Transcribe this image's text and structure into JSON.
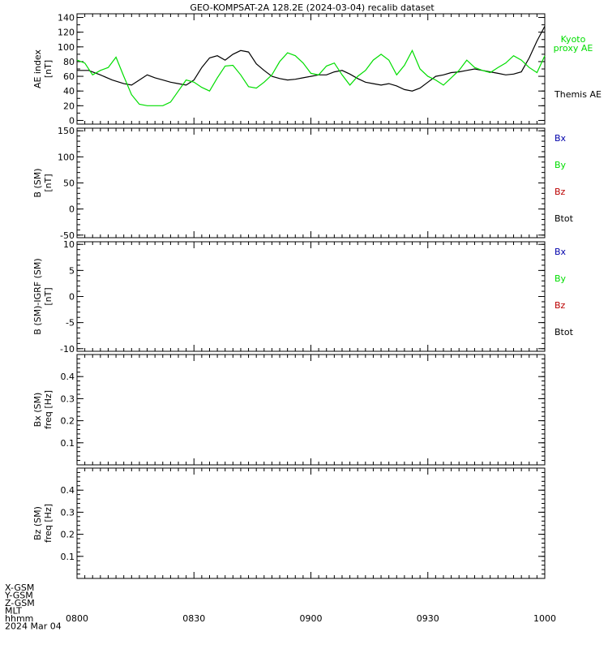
{
  "title": "GEO-KOMPSAT-2A 128.2E (2024-03-04) recalib dataset",
  "colors": {
    "black": "#000000",
    "green": "#00dd00",
    "blue": "#0000aa",
    "red": "#bb0000"
  },
  "time_axis": {
    "start": "0800",
    "end": "1000",
    "labels": [
      "0800",
      "0830",
      "0900",
      "0930",
      "1000"
    ],
    "footer": [
      "X-GSM",
      "Y-GSM",
      "Z-GSM",
      "MLT",
      "hhmm",
      "2024 Mar 04"
    ]
  },
  "chart_data": [
    {
      "type": "line",
      "id": "ae",
      "ylabel": [
        "AE index",
        "[nT]"
      ],
      "ylim": [
        -5,
        145
      ],
      "yticks": [
        0,
        20,
        40,
        60,
        80,
        100,
        120,
        140
      ],
      "series": [
        {
          "name": "Themis AE",
          "color": "#000000",
          "minutes": [
            0,
            3,
            6,
            9,
            12,
            14,
            16,
            18,
            20,
            22,
            24,
            26,
            28,
            30,
            32,
            34,
            36,
            38,
            40,
            42,
            44,
            46,
            48,
            50,
            52,
            54,
            56,
            58,
            60,
            62,
            64,
            66,
            68,
            70,
            72,
            74,
            76,
            78,
            80,
            82,
            84,
            86,
            88,
            90,
            92,
            94,
            96,
            98,
            100,
            102,
            104,
            106,
            108,
            110,
            112,
            114,
            116,
            118,
            120
          ],
          "values": [
            68,
            68,
            62,
            55,
            50,
            48,
            55,
            62,
            58,
            55,
            52,
            50,
            48,
            55,
            72,
            85,
            88,
            82,
            90,
            95,
            93,
            77,
            68,
            60,
            57,
            55,
            56,
            58,
            60,
            62,
            62,
            66,
            68,
            63,
            57,
            52,
            50,
            48,
            50,
            47,
            42,
            40,
            44,
            52,
            60,
            62,
            65,
            66,
            68,
            70,
            68,
            66,
            64,
            62,
            63,
            66,
            85,
            108,
            128
          ]
        },
        {
          "name": "Kyoto proxy AE",
          "label_lines": [
            "Kyoto",
            "proxy AE"
          ],
          "color": "#00dd00",
          "minutes": [
            0,
            2,
            4,
            6,
            8,
            10,
            12,
            14,
            16,
            18,
            20,
            22,
            24,
            26,
            28,
            30,
            32,
            34,
            36,
            38,
            40,
            42,
            44,
            46,
            48,
            50,
            52,
            54,
            56,
            58,
            60,
            62,
            64,
            66,
            68,
            70,
            72,
            74,
            76,
            78,
            80,
            82,
            84,
            86,
            88,
            90,
            92,
            94,
            96,
            98,
            100,
            102,
            104,
            106,
            108,
            110,
            112,
            114,
            116,
            118,
            120
          ],
          "values": [
            82,
            78,
            62,
            68,
            72,
            86,
            60,
            35,
            22,
            20,
            20,
            20,
            25,
            40,
            55,
            52,
            45,
            40,
            58,
            74,
            75,
            62,
            46,
            44,
            52,
            62,
            80,
            92,
            88,
            78,
            64,
            62,
            74,
            78,
            62,
            48,
            60,
            68,
            82,
            90,
            82,
            62,
            75,
            95,
            70,
            60,
            55,
            48,
            58,
            68,
            82,
            72,
            68,
            65,
            72,
            78,
            88,
            82,
            72,
            65,
            88
          ]
        }
      ]
    },
    {
      "type": "line",
      "id": "b-sm",
      "ylabel": [
        "B (SM)",
        "[nT]"
      ],
      "ylim": [
        -55,
        155
      ],
      "yticks": [
        -50,
        0,
        50,
        100,
        150
      ],
      "series": [
        {
          "name": "Bx",
          "color": "#0000aa"
        },
        {
          "name": "By",
          "color": "#00dd00"
        },
        {
          "name": "Bz",
          "color": "#bb0000"
        },
        {
          "name": "Btot",
          "color": "#000000"
        }
      ]
    },
    {
      "type": "line",
      "id": "b-sm-igrf",
      "ylabel": [
        "B (SM)-IGRF (SM)",
        "[nT]"
      ],
      "ylim": [
        -10.5,
        10.5
      ],
      "yticks": [
        -10,
        -5,
        0,
        5,
        10
      ],
      "series": [
        {
          "name": "Bx",
          "color": "#0000aa"
        },
        {
          "name": "By",
          "color": "#00dd00"
        },
        {
          "name": "Bz",
          "color": "#bb0000"
        },
        {
          "name": "Btot",
          "color": "#000000"
        }
      ]
    },
    {
      "type": "heatmap",
      "id": "bx-spectrum",
      "ylabel": [
        "Bx (SM)",
        "freq [Hz]"
      ],
      "ylim": [
        0,
        0.5
      ],
      "yticks": [
        0.1,
        0.2,
        0.3,
        0.4
      ]
    },
    {
      "type": "heatmap",
      "id": "bz-spectrum",
      "ylabel": [
        "Bz (SM)",
        "freq [Hz]"
      ],
      "ylim": [
        0,
        0.5
      ],
      "yticks": [
        0.1,
        0.2,
        0.3,
        0.4
      ]
    }
  ]
}
